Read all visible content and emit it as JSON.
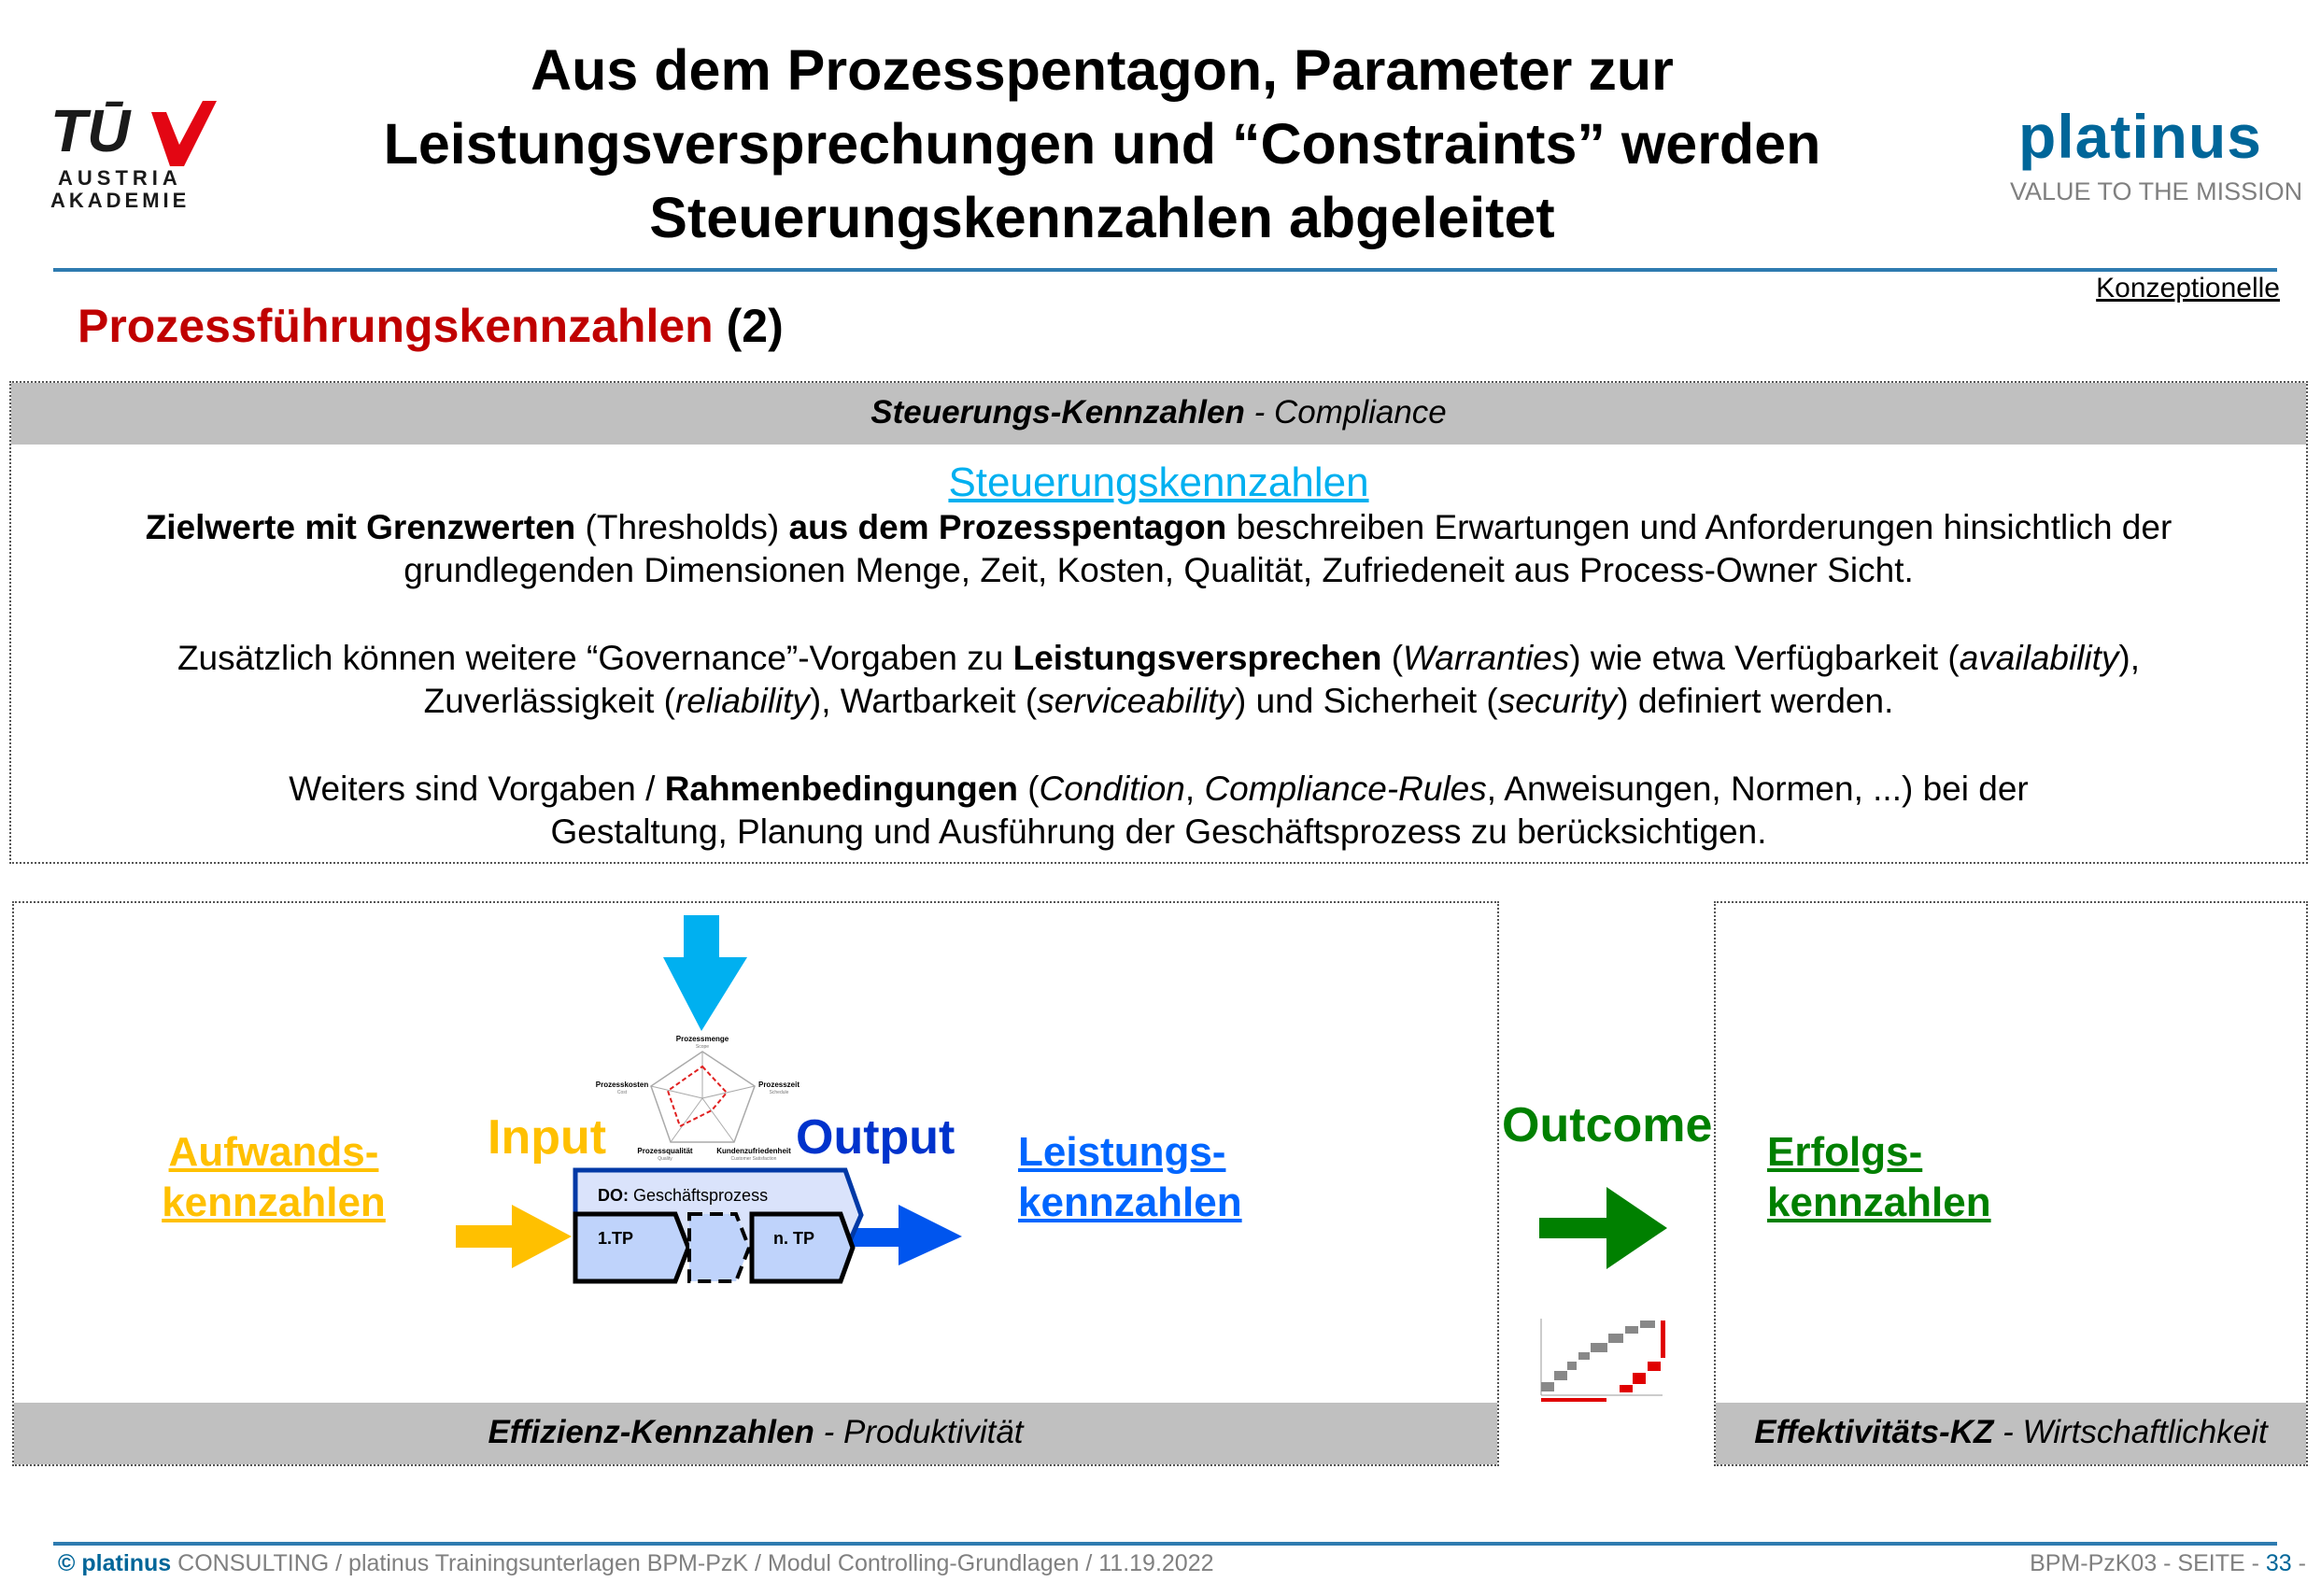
{
  "header": {
    "title_lines": [
      "Aus dem Prozesspentagon, Parameter zur",
      "Leistungsversprechungen und “Constraints” werden",
      "Steuerungskennzahlen abgeleitet"
    ],
    "tuv_logo": {
      "mark": "TÜV",
      "line1": "AUSTRIA",
      "line2": "AKADEMIE"
    },
    "platinus_logo": "platinus",
    "tagline": "VALUE TO THE MISSION",
    "konzeptionelle": "Konzeptionelle"
  },
  "section": {
    "title": "Prozessführungskennzahlen",
    "number": "(2)"
  },
  "compliance_box": {
    "header_bold": "Steuerungs-Kennzahlen",
    "header_rest": " - Compliance",
    "heading": "Steuerungskennzahlen",
    "p1": {
      "b1": "Zielwerte mit Grenzwerten",
      "t1": " (Thresholds) ",
      "b2": "aus dem Prozesspentagon",
      "t2": " beschreiben Erwartungen und Anforderungen hinsichtlich der grundlegenden Dimensionen Menge, Zeit, Kosten, Qualität, Zufriedeneit aus Process-Owner Sicht."
    },
    "p2": {
      "t1": "Zusätzlich können weitere “Governance”-Vorgaben zu ",
      "b1": "Leistungsversprechen",
      "t2": " (",
      "i1": "Warranties",
      "t3": ") wie etwa Verfügbarkeit (",
      "i2": "availability",
      "t4": "), Zuverlässigkeit (",
      "i3": "reliability",
      "t5": "), Wartbarkeit (",
      "i4": "serviceability",
      "t6": ") und Sicherheit (",
      "i5": "security",
      "t7": ") definiert werden."
    },
    "p3": {
      "t1": "Weiters sind Vorgaben / ",
      "b1": "Rahmenbedingungen",
      "t2": " (",
      "i1": "Condition",
      "t3": ", ",
      "i2": "Compliance-Rules",
      "t4": ", Anweisungen, Normen, ...) bei der Gestaltung, Planung und Ausführung der Geschäftsprozess zu berücksichtigen."
    }
  },
  "efficiency_box": {
    "aufwand_line1": "Aufwands-",
    "aufwand_line2": "kennzahlen",
    "input": "Input",
    "output": "Output",
    "leistung_line1": "Leistungs-",
    "leistung_line2": "kennzahlen",
    "pentagon": {
      "top": "Prozessmenge",
      "top_sub": "Scope",
      "right": "Prozesszeit",
      "right_sub": "Schedule",
      "left": "Prozesskosten",
      "left_sub": "Cost",
      "bl": "Prozessqualität",
      "bl_sub": "Quality",
      "br": "Kundenzufriedenheit",
      "br_sub": "Customer Satisfaction"
    },
    "process": {
      "do_bold": "DO:",
      "do_rest": " Geschäftsprozess",
      "first": "1.TP",
      "last": "n. TP"
    },
    "footer_bold": "Effizienz-Kennzahlen",
    "footer_rest": " - Produktivität"
  },
  "outcome": {
    "label": "Outcome"
  },
  "effectiveness_box": {
    "erfolg_line1": "Erfolgs-",
    "erfolg_line2": "kennzahlen",
    "footer_bold": "Effektivitäts-KZ",
    "footer_rest": " - Wirtschaftlichkeit"
  },
  "colors": {
    "red": "#c00000",
    "yellow": "#ffc000",
    "cyan": "#00b0f0",
    "blue": "#0033cc",
    "green": "#008000",
    "platinus": "#006699"
  },
  "footer": {
    "copyright": "©",
    "brand": "platinus",
    "text": " CONSULTING / platinus Trainingsunterlagen BPM-PzK  /  Modul Controlling-Grundlagen  / 11.19.2022",
    "code": "BPM-PzK03  - SEITE - ",
    "page": "33",
    "suffix": " -"
  }
}
